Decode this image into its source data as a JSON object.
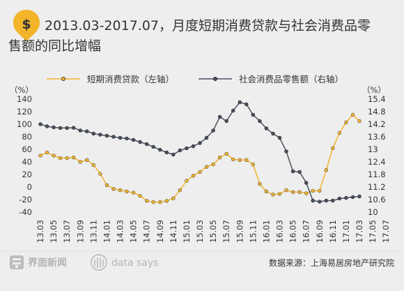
{
  "header": {
    "title_line1": "2013.03-2017.07，月度短期消费贷款与社会消费品零",
    "title_line2": "售额的同比增幅",
    "logo_glyph": "$",
    "logo_icon": "dollar-pin-icon"
  },
  "footer": {
    "brand": "界面新闻",
    "brand_icon": "jiemian-logo-icon",
    "datasays_icon": "fingerprint-icon",
    "datasays": "data says",
    "source": "数据来源：上海易居房地产研究院"
  },
  "chart_data": {
    "type": "line",
    "colors": {
      "series_left": "#f2b429",
      "series_right": "#4a525e",
      "title_box": "#f2b429"
    },
    "y_left": {
      "unit": "（%）",
      "ticks": [
        "140",
        "120",
        "100",
        "80",
        "60",
        "40",
        "20",
        "0",
        "-20",
        "-40"
      ],
      "range": [
        -40,
        140
      ]
    },
    "y_right": {
      "unit": "（%）",
      "ticks": [
        "15.4",
        "14.8",
        "14.2",
        "13.6",
        "13",
        "12.4",
        "11.8",
        "11.2",
        "10.6",
        "10"
      ],
      "range": [
        10,
        15.4
      ]
    },
    "x_labels": [
      "13.03",
      "13.05",
      "13.07",
      "13.09",
      "13.11",
      "14.01",
      "14.03",
      "14.05",
      "14.07",
      "14.09",
      "14.11",
      "15.01",
      "15.03",
      "15.05",
      "15.07",
      "15.09",
      "15.11",
      "16.01",
      "16.03",
      "16.05",
      "16.07",
      "16.09",
      "16.11",
      "17.01",
      "17.03",
      "17.05",
      "17.07"
    ],
    "legend_position": "top",
    "series": [
      {
        "name": "短期消费贷款（左轴）",
        "axis": "left",
        "values": [
          50,
          55,
          50,
          46,
          46,
          47,
          40,
          43,
          35,
          21,
          3,
          -3,
          -5,
          -7,
          -9,
          -14,
          -22,
          -24,
          -24,
          -22,
          -18,
          -5,
          10,
          18,
          24,
          32,
          36,
          47,
          53,
          44,
          43,
          43,
          36,
          5,
          -7,
          -12,
          -11,
          -5,
          -8,
          -8,
          -10,
          -6,
          -6,
          27,
          62,
          86,
          103,
          115,
          105
        ]
      },
      {
        "name": "社会消费品零售额（右轴）",
        "axis": "right",
        "values": [
          14.2,
          14.1,
          14.05,
          14.02,
          14.02,
          14.03,
          13.9,
          13.86,
          13.75,
          13.7,
          13.65,
          13.6,
          13.55,
          13.52,
          13.45,
          13.35,
          13.25,
          13.12,
          12.98,
          12.85,
          12.75,
          12.95,
          13.05,
          13.15,
          13.3,
          13.55,
          13.9,
          14.55,
          14.35,
          14.85,
          15.25,
          15.15,
          14.65,
          14.35,
          14.0,
          13.75,
          13.55,
          12.9,
          11.95,
          11.92,
          11.4,
          10.55,
          10.5,
          10.55,
          10.55,
          10.65,
          10.68,
          10.72,
          10.75
        ]
      }
    ]
  }
}
